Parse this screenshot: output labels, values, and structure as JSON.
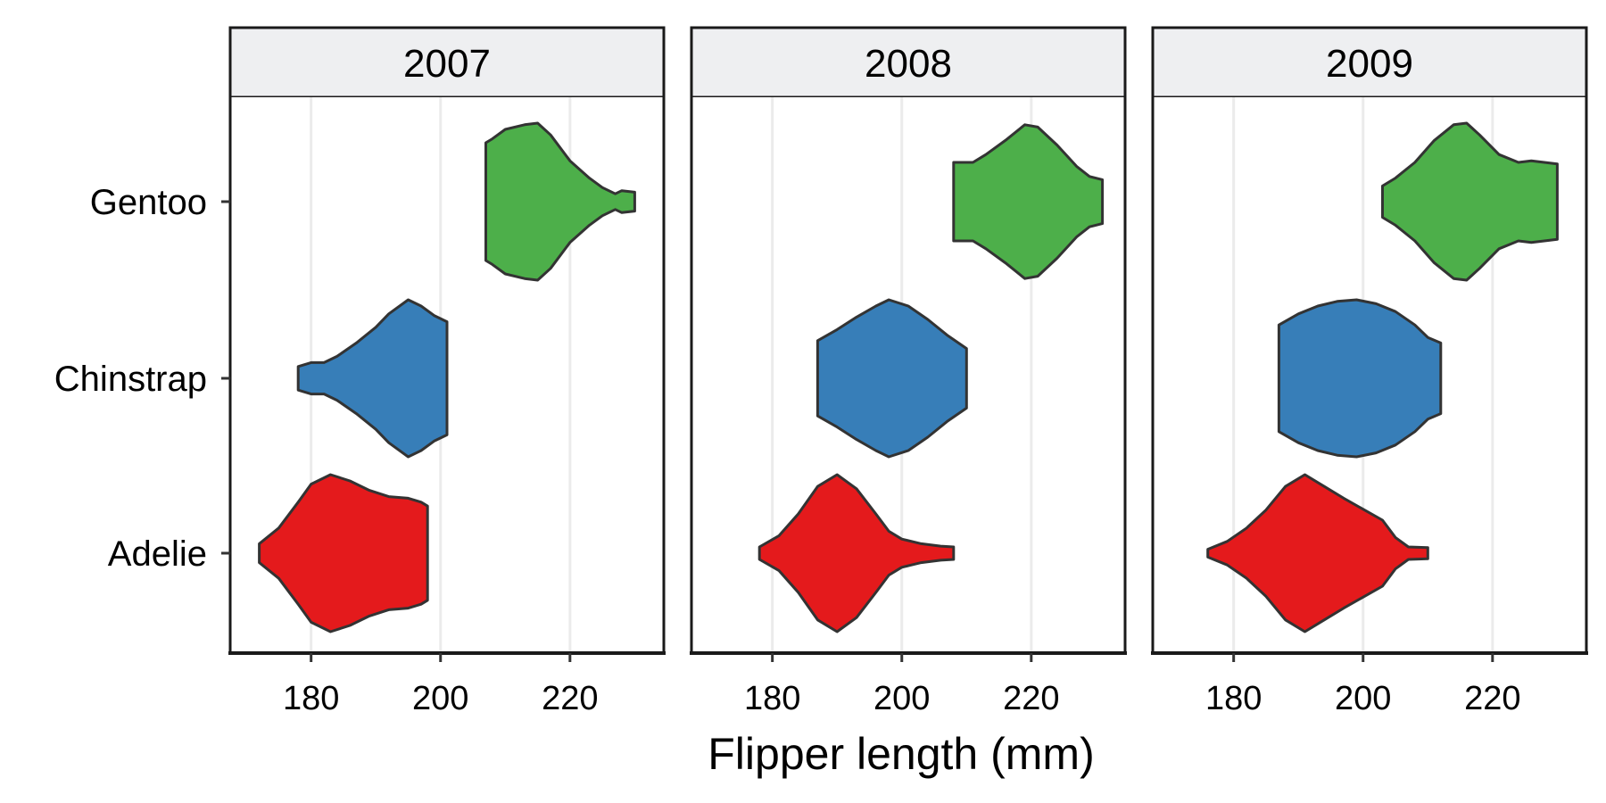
{
  "chart_data": {
    "type": "violin",
    "facet_labels": [
      "2007",
      "2008",
      "2009"
    ],
    "categories": [
      "Adelie",
      "Chinstrap",
      "Gentoo"
    ],
    "xlabel": "Flipper length (mm)",
    "ylabel": "",
    "xlim": [
      167.5,
      234.5
    ],
    "xticks": [
      180,
      200,
      220
    ],
    "grid": "vertical major",
    "colors": {
      "Adelie": "#e41a1c",
      "Chinstrap": "#377eb8",
      "Gentoo": "#4daf4a",
      "outline": "#333333",
      "strip": "#eeeff1"
    },
    "panels": [
      {
        "year": "2007",
        "violins": [
          {
            "species": "Adelie",
            "min": 172,
            "max": 198,
            "profile": [
              [
                172,
                0.12
              ],
              [
                175,
                0.32
              ],
              [
                178,
                0.65
              ],
              [
                180,
                0.88
              ],
              [
                183,
                1.0
              ],
              [
                186,
                0.92
              ],
              [
                189,
                0.8
              ],
              [
                192,
                0.72
              ],
              [
                195,
                0.7
              ],
              [
                197,
                0.65
              ],
              [
                198,
                0.6
              ]
            ]
          },
          {
            "species": "Chinstrap",
            "min": 178,
            "max": 201,
            "profile": [
              [
                178,
                0.15
              ],
              [
                180,
                0.2
              ],
              [
                182,
                0.2
              ],
              [
                184,
                0.28
              ],
              [
                187,
                0.45
              ],
              [
                190,
                0.65
              ],
              [
                192,
                0.82
              ],
              [
                195,
                1.0
              ],
              [
                197,
                0.92
              ],
              [
                199,
                0.8
              ],
              [
                201,
                0.72
              ]
            ]
          },
          {
            "species": "Gentoo",
            "min": 207,
            "max": 230,
            "profile": [
              [
                207,
                0.75
              ],
              [
                208,
                0.8
              ],
              [
                210,
                0.92
              ],
              [
                213,
                0.98
              ],
              [
                215,
                1.0
              ],
              [
                217,
                0.85
              ],
              [
                220,
                0.52
              ],
              [
                223,
                0.3
              ],
              [
                225,
                0.18
              ],
              [
                227,
                0.1
              ],
              [
                228,
                0.14
              ],
              [
                230,
                0.12
              ]
            ]
          }
        ]
      },
      {
        "year": "2008",
        "violins": [
          {
            "species": "Adelie",
            "min": 178,
            "max": 208,
            "profile": [
              [
                178,
                0.08
              ],
              [
                181,
                0.22
              ],
              [
                184,
                0.5
              ],
              [
                187,
                0.85
              ],
              [
                190,
                1.0
              ],
              [
                193,
                0.82
              ],
              [
                196,
                0.5
              ],
              [
                198,
                0.28
              ],
              [
                200,
                0.18
              ],
              [
                203,
                0.12
              ],
              [
                206,
                0.09
              ],
              [
                208,
                0.08
              ]
            ]
          },
          {
            "species": "Chinstrap",
            "min": 187,
            "max": 210,
            "profile": [
              [
                187,
                0.48
              ],
              [
                190,
                0.62
              ],
              [
                193,
                0.78
              ],
              [
                196,
                0.92
              ],
              [
                198,
                1.0
              ],
              [
                201,
                0.92
              ],
              [
                204,
                0.75
              ],
              [
                207,
                0.55
              ],
              [
                210,
                0.38
              ]
            ]
          },
          {
            "species": "Gentoo",
            "min": 208,
            "max": 231,
            "profile": [
              [
                208,
                0.5
              ],
              [
                211,
                0.5
              ],
              [
                213,
                0.6
              ],
              [
                216,
                0.78
              ],
              [
                219,
                0.98
              ],
              [
                221,
                0.95
              ],
              [
                224,
                0.72
              ],
              [
                227,
                0.45
              ],
              [
                229,
                0.32
              ],
              [
                231,
                0.28
              ]
            ]
          }
        ]
      },
      {
        "year": "2009",
        "violins": [
          {
            "species": "Adelie",
            "min": 176,
            "max": 210,
            "profile": [
              [
                176,
                0.05
              ],
              [
                179,
                0.15
              ],
              [
                182,
                0.32
              ],
              [
                185,
                0.55
              ],
              [
                188,
                0.85
              ],
              [
                191,
                1.0
              ],
              [
                194,
                0.85
              ],
              [
                197,
                0.7
              ],
              [
                200,
                0.56
              ],
              [
                203,
                0.42
              ],
              [
                205,
                0.2
              ],
              [
                207,
                0.08
              ],
              [
                210,
                0.07
              ]
            ]
          },
          {
            "species": "Chinstrap",
            "min": 187,
            "max": 212,
            "profile": [
              [
                187,
                0.68
              ],
              [
                190,
                0.82
              ],
              [
                193,
                0.92
              ],
              [
                196,
                0.98
              ],
              [
                199,
                1.0
              ],
              [
                202,
                0.95
              ],
              [
                205,
                0.85
              ],
              [
                208,
                0.68
              ],
              [
                210,
                0.52
              ],
              [
                212,
                0.45
              ]
            ]
          },
          {
            "species": "Gentoo",
            "min": 203,
            "max": 230,
            "profile": [
              [
                203,
                0.2
              ],
              [
                205,
                0.3
              ],
              [
                208,
                0.5
              ],
              [
                211,
                0.78
              ],
              [
                214,
                0.98
              ],
              [
                216,
                1.0
              ],
              [
                218,
                0.85
              ],
              [
                221,
                0.6
              ],
              [
                224,
                0.5
              ],
              [
                226,
                0.52
              ],
              [
                228,
                0.5
              ],
              [
                230,
                0.48
              ]
            ]
          }
        ]
      }
    ]
  }
}
